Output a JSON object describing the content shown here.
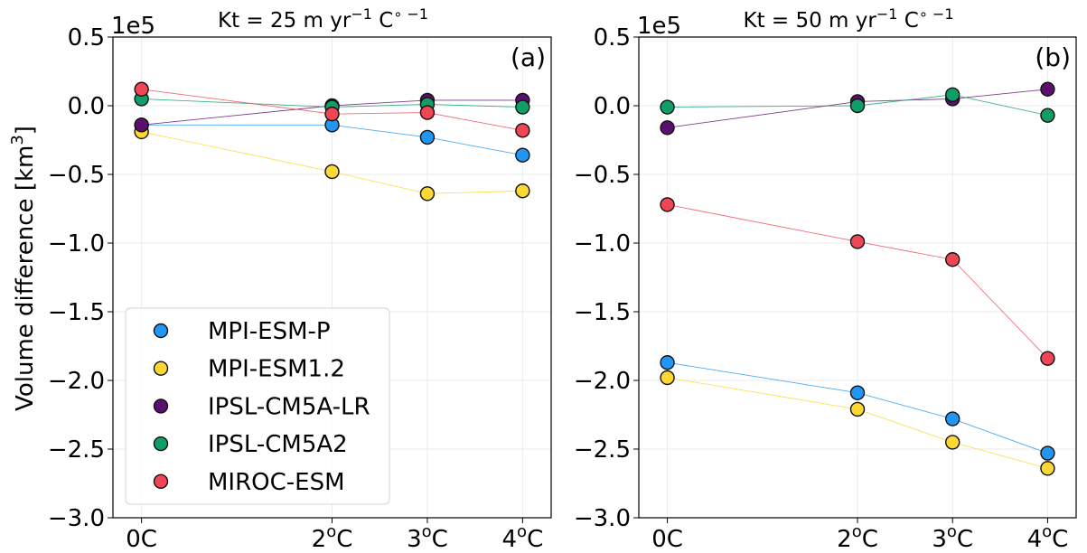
{
  "chart_data": [
    {
      "type": "line",
      "panel_label": "(a)",
      "title": "Kt = 25 m yr⁻¹ C∘⁻¹",
      "title_parts": {
        "base": "Kt = 25 m yr",
        "sup1": "−1",
        "mid": " C",
        "sup2": "∘ −1"
      },
      "xlabel": "",
      "ylabel": "Volume difference [km³]",
      "ylabel_parts": {
        "base": "Volume difference [km",
        "sup": "3",
        "end": "]"
      },
      "offset_label": "1e5",
      "x": [
        0,
        2,
        3,
        4
      ],
      "x_tick_labels": [
        {
          "base": "0C",
          "sup": ""
        },
        {
          "base": "2",
          "sup": "o",
          "end": "C"
        },
        {
          "base": "3",
          "sup": "o",
          "end": "C"
        },
        {
          "base": "4",
          "sup": "o",
          "end": "C"
        }
      ],
      "xlim": [
        -0.3,
        4.3
      ],
      "ylim": [
        -3.0,
        0.5
      ],
      "y_ticks": [
        0.5,
        0.0,
        -0.5,
        -1.0,
        -1.5,
        -2.0,
        -2.5,
        -3.0
      ],
      "y_tick_labels": [
        "0.5",
        "0.0",
        "−0.5",
        "−1.0",
        "−1.5",
        "−2.0",
        "−2.5",
        "−3.0"
      ],
      "grid": true,
      "legend_position": "lower-left",
      "series": [
        {
          "name": "MPI-ESM-P",
          "color": "#2196f3",
          "values": [
            -0.14,
            -0.14,
            -0.23,
            -0.36
          ]
        },
        {
          "name": "MPI-ESM1.2",
          "color": "#fdd835",
          "values": [
            -0.19,
            -0.48,
            -0.64,
            -0.62
          ]
        },
        {
          "name": "IPSL-CM5A-LR",
          "color": "#5c0f6e",
          "values": [
            -0.14,
            0.0,
            0.04,
            0.04
          ]
        },
        {
          "name": "IPSL-CM5A2",
          "color": "#0f9d68",
          "values": [
            0.05,
            -0.01,
            0.01,
            -0.01
          ]
        },
        {
          "name": "MIROC-ESM",
          "color": "#ef4655",
          "values": [
            0.12,
            -0.06,
            -0.05,
            -0.18
          ]
        }
      ]
    },
    {
      "type": "line",
      "panel_label": "(b)",
      "title": "Kt = 50 m yr⁻¹ C∘⁻¹",
      "title_parts": {
        "base": "Kt = 50 m yr",
        "sup1": "−1",
        "mid": " C",
        "sup2": "∘ −1"
      },
      "xlabel": "",
      "ylabel": "",
      "offset_label": "1e5",
      "x": [
        0,
        2,
        3,
        4
      ],
      "x_tick_labels": [
        {
          "base": "0C",
          "sup": ""
        },
        {
          "base": "2",
          "sup": "o",
          "end": "C"
        },
        {
          "base": "3",
          "sup": "o",
          "end": "C"
        },
        {
          "base": "4",
          "sup": "o",
          "end": "C"
        }
      ],
      "xlim": [
        -0.3,
        4.3
      ],
      "ylim": [
        -3.0,
        0.5
      ],
      "y_ticks": [
        0.5,
        0.0,
        -0.5,
        -1.0,
        -1.5,
        -2.0,
        -2.5,
        -3.0
      ],
      "y_tick_labels": [
        "0.5",
        "0.0",
        "−0.5",
        "−1.0",
        "−1.5",
        "−2.0",
        "−2.5",
        "−3.0"
      ],
      "grid": true,
      "legend_position": "none",
      "series": [
        {
          "name": "MPI-ESM-P",
          "color": "#2196f3",
          "values": [
            -1.87,
            -2.09,
            -2.28,
            -2.53
          ]
        },
        {
          "name": "MPI-ESM1.2",
          "color": "#fdd835",
          "values": [
            -1.98,
            -2.21,
            -2.45,
            -2.64
          ]
        },
        {
          "name": "IPSL-CM5A-LR",
          "color": "#5c0f6e",
          "values": [
            -0.16,
            0.03,
            0.05,
            0.12
          ]
        },
        {
          "name": "IPSL-CM5A2",
          "color": "#0f9d68",
          "values": [
            -0.01,
            0.0,
            0.08,
            -0.07
          ]
        },
        {
          "name": "MIROC-ESM",
          "color": "#ef4655",
          "values": [
            -0.72,
            -0.99,
            -1.12,
            -1.84
          ]
        }
      ]
    }
  ]
}
